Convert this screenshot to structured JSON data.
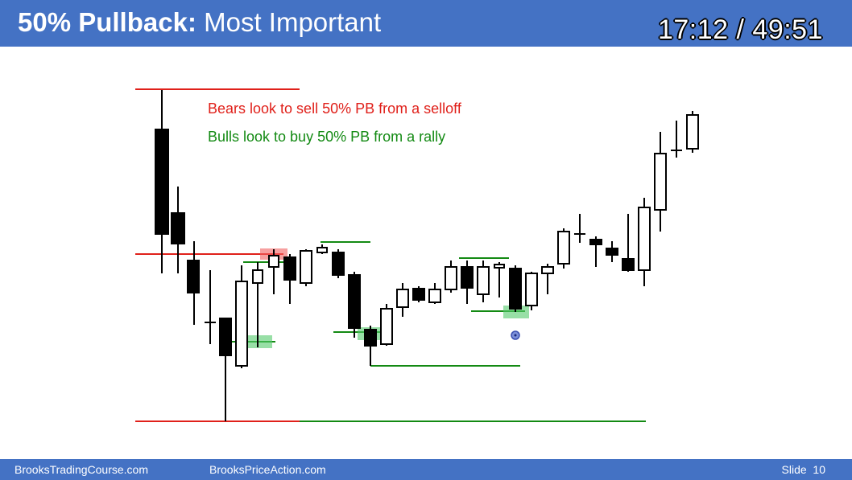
{
  "header": {
    "title_bold": "50% Pullback:",
    "title_rest": " Most Important",
    "timer": "17:12 / 49:51"
  },
  "annotations": {
    "bears": "Bears look to sell 50% PB from a selloff",
    "bulls": "Bulls look to buy 50% PB from a rally"
  },
  "footer": {
    "left_link": "BrooksTradingCourse.com",
    "center_link": "BrooksPriceAction.com",
    "slide": "Slide  10"
  },
  "colors": {
    "header_bg": "#4472c4",
    "bear_red": "#e0201a",
    "bull_green": "#138a13",
    "bull_highlight": "#54c96b",
    "bear_highlight": "#f26060"
  }
}
